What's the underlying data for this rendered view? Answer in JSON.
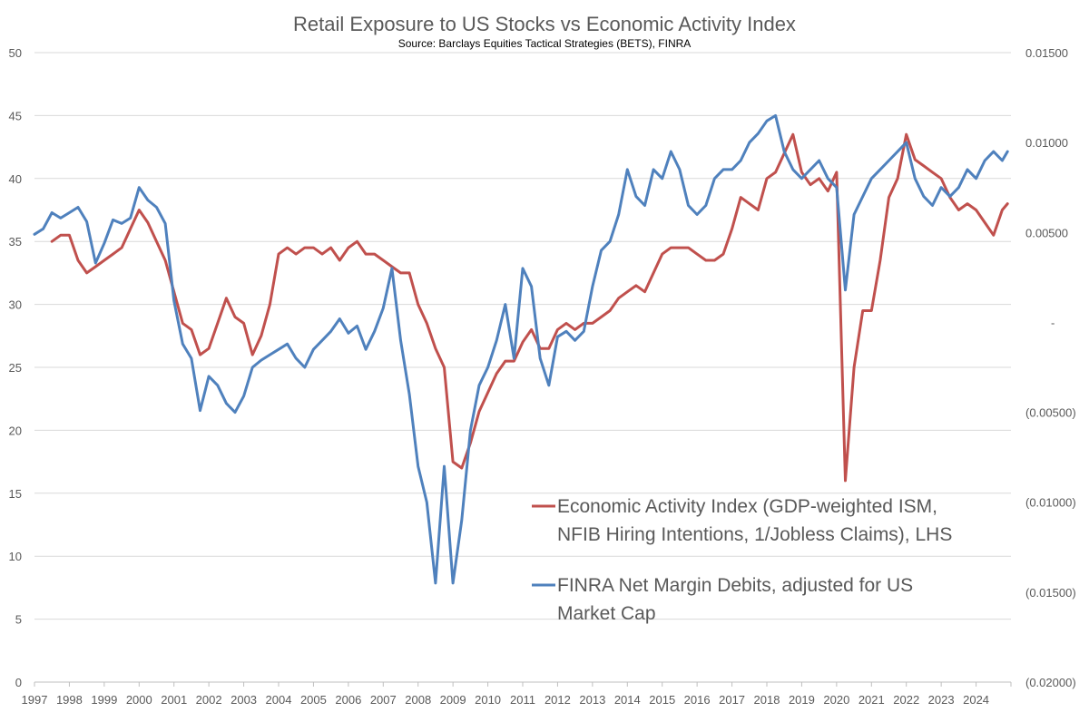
{
  "chart_data": {
    "type": "line",
    "title": "Retail Exposure to US Stocks vs Economic Activity Index",
    "subtitle": "Source: Barclays Equities Tactical Strategies (BETS), FINRA",
    "x_start": 1997.0,
    "x_end": 2025.0,
    "x_step": 0.25,
    "x_tick_labels": [
      "1997",
      "1998",
      "1999",
      "2000",
      "2001",
      "2002",
      "2003",
      "2004",
      "2005",
      "2006",
      "2007",
      "2008",
      "2009",
      "2010",
      "2011",
      "2012",
      "2013",
      "2014",
      "2015",
      "2016",
      "2017",
      "2018",
      "2019",
      "2020",
      "2021",
      "2022",
      "2023",
      "2024"
    ],
    "y_left": {
      "min": 0,
      "max": 50,
      "step": 5,
      "tick_labels": [
        "0",
        "5",
        "10",
        "15",
        "20",
        "25",
        "30",
        "35",
        "40",
        "45",
        "50"
      ]
    },
    "y_right": {
      "min": -0.02,
      "max": 0.015,
      "step": 0.005,
      "tick_labels": [
        "(0.02000)",
        "(0.01500)",
        "(0.01000)",
        "(0.00500)",
        "-",
        "0.00500",
        "0.01000",
        "0.01500"
      ]
    },
    "series": [
      {
        "name": "Economic Activity Index (GDP-weighted ISM, NFIB Hiring Intentions, 1/Jobless Claims), LHS",
        "legend_lines": [
          "Economic Activity Index (GDP-weighted ISM,",
          "NFIB Hiring Intentions, 1/Jobless Claims), LHS"
        ],
        "axis": "left",
        "color": "#c0504d",
        "start": 1997.5,
        "points": [
          [
            1997.5,
            35.0
          ],
          [
            1997.75,
            35.5
          ],
          [
            1998.0,
            35.5
          ],
          [
            1998.25,
            33.5
          ],
          [
            1998.5,
            32.5
          ],
          [
            1998.75,
            33.0
          ],
          [
            1999.0,
            33.5
          ],
          [
            1999.25,
            34.0
          ],
          [
            1999.5,
            34.5
          ],
          [
            1999.75,
            36.0
          ],
          [
            2000.0,
            37.5
          ],
          [
            2000.25,
            36.5
          ],
          [
            2000.5,
            35.0
          ],
          [
            2000.75,
            33.5
          ],
          [
            2001.0,
            31.0
          ],
          [
            2001.25,
            28.5
          ],
          [
            2001.5,
            28.0
          ],
          [
            2001.75,
            26.0
          ],
          [
            2002.0,
            26.5
          ],
          [
            2002.25,
            28.5
          ],
          [
            2002.5,
            30.5
          ],
          [
            2002.75,
            29.0
          ],
          [
            2003.0,
            28.5
          ],
          [
            2003.25,
            26.0
          ],
          [
            2003.5,
            27.5
          ],
          [
            2003.75,
            30.0
          ],
          [
            2004.0,
            34.0
          ],
          [
            2004.25,
            34.5
          ],
          [
            2004.5,
            34.0
          ],
          [
            2004.75,
            34.5
          ],
          [
            2005.0,
            34.5
          ],
          [
            2005.25,
            34.0
          ],
          [
            2005.5,
            34.5
          ],
          [
            2005.75,
            33.5
          ],
          [
            2006.0,
            34.5
          ],
          [
            2006.25,
            35.0
          ],
          [
            2006.5,
            34.0
          ],
          [
            2006.75,
            34.0
          ],
          [
            2007.0,
            33.5
          ],
          [
            2007.25,
            33.0
          ],
          [
            2007.5,
            32.5
          ],
          [
            2007.75,
            32.5
          ],
          [
            2008.0,
            30.0
          ],
          [
            2008.25,
            28.5
          ],
          [
            2008.5,
            26.5
          ],
          [
            2008.75,
            25.0
          ],
          [
            2009.0,
            17.5
          ],
          [
            2009.25,
            17.0
          ],
          [
            2009.5,
            19.0
          ],
          [
            2009.75,
            21.5
          ],
          [
            2010.0,
            23.0
          ],
          [
            2010.25,
            24.5
          ],
          [
            2010.5,
            25.5
          ],
          [
            2010.75,
            25.5
          ],
          [
            2011.0,
            27.0
          ],
          [
            2011.25,
            28.0
          ],
          [
            2011.5,
            26.5
          ],
          [
            2011.75,
            26.5
          ],
          [
            2012.0,
            28.0
          ],
          [
            2012.25,
            28.5
          ],
          [
            2012.5,
            28.0
          ],
          [
            2012.75,
            28.5
          ],
          [
            2013.0,
            28.5
          ],
          [
            2013.25,
            29.0
          ],
          [
            2013.5,
            29.5
          ],
          [
            2013.75,
            30.5
          ],
          [
            2014.0,
            31.0
          ],
          [
            2014.25,
            31.5
          ],
          [
            2014.5,
            31.0
          ],
          [
            2014.75,
            32.5
          ],
          [
            2015.0,
            34.0
          ],
          [
            2015.25,
            34.5
          ],
          [
            2015.5,
            34.5
          ],
          [
            2015.75,
            34.5
          ],
          [
            2016.0,
            34.0
          ],
          [
            2016.25,
            33.5
          ],
          [
            2016.5,
            33.5
          ],
          [
            2016.75,
            34.0
          ],
          [
            2017.0,
            36.0
          ],
          [
            2017.25,
            38.5
          ],
          [
            2017.5,
            38.0
          ],
          [
            2017.75,
            37.5
          ],
          [
            2018.0,
            40.0
          ],
          [
            2018.25,
            40.5
          ],
          [
            2018.5,
            42.0
          ],
          [
            2018.75,
            43.5
          ],
          [
            2019.0,
            40.5
          ],
          [
            2019.25,
            39.5
          ],
          [
            2019.5,
            40.0
          ],
          [
            2019.75,
            39.0
          ],
          [
            2020.0,
            40.5
          ],
          [
            2020.25,
            16.0
          ],
          [
            2020.5,
            25.0
          ],
          [
            2020.75,
            29.5
          ],
          [
            2021.0,
            29.5
          ],
          [
            2021.25,
            33.5
          ],
          [
            2021.5,
            38.5
          ],
          [
            2021.75,
            40.0
          ],
          [
            2022.0,
            43.5
          ],
          [
            2022.25,
            41.5
          ],
          [
            2022.5,
            41.0
          ],
          [
            2022.75,
            40.5
          ],
          [
            2023.0,
            40.0
          ],
          [
            2023.25,
            38.5
          ],
          [
            2023.5,
            37.5
          ],
          [
            2023.75,
            38.0
          ],
          [
            2024.0,
            37.5
          ],
          [
            2024.25,
            36.5
          ],
          [
            2024.5,
            35.5
          ],
          [
            2024.75,
            37.5
          ],
          [
            2024.9,
            38.0
          ]
        ]
      },
      {
        "name": "FINRA Net Margin Debits, adjusted for US Market Cap",
        "legend_lines": [
          "FINRA Net Margin Debits, adjusted for US",
          "Market Cap"
        ],
        "axis": "right",
        "color": "#4f81bd",
        "start": 1997.0,
        "points": [
          [
            1997.0,
            0.0049
          ],
          [
            1997.25,
            0.0052
          ],
          [
            1997.5,
            0.0061
          ],
          [
            1997.75,
            0.0058
          ],
          [
            1998.0,
            0.0061
          ],
          [
            1998.25,
            0.0064
          ],
          [
            1998.5,
            0.0056
          ],
          [
            1998.75,
            0.0033
          ],
          [
            1999.0,
            0.0044
          ],
          [
            1999.25,
            0.0057
          ],
          [
            1999.5,
            0.0055
          ],
          [
            1999.75,
            0.0058
          ],
          [
            2000.0,
            0.0075
          ],
          [
            2000.25,
            0.0068
          ],
          [
            2000.5,
            0.0064
          ],
          [
            2000.75,
            0.0055
          ],
          [
            2001.0,
            0.0012
          ],
          [
            2001.25,
            -0.0012
          ],
          [
            2001.5,
            -0.002
          ],
          [
            2001.75,
            -0.0049
          ],
          [
            2002.0,
            -0.003
          ],
          [
            2002.25,
            -0.0035
          ],
          [
            2002.5,
            -0.0045
          ],
          [
            2002.75,
            -0.005
          ],
          [
            2003.0,
            -0.0041
          ],
          [
            2003.25,
            -0.0025
          ],
          [
            2003.5,
            -0.0021
          ],
          [
            2003.75,
            -0.0018
          ],
          [
            2004.0,
            -0.0015
          ],
          [
            2004.25,
            -0.0012
          ],
          [
            2004.5,
            -0.002
          ],
          [
            2004.75,
            -0.0025
          ],
          [
            2005.0,
            -0.0015
          ],
          [
            2005.25,
            -0.001
          ],
          [
            2005.5,
            -0.0005
          ],
          [
            2005.75,
            0.0002
          ],
          [
            2006.0,
            -0.0006
          ],
          [
            2006.25,
            -0.0002
          ],
          [
            2006.5,
            -0.0015
          ],
          [
            2006.75,
            -0.0005
          ],
          [
            2007.0,
            0.0008
          ],
          [
            2007.25,
            0.003
          ],
          [
            2007.5,
            -0.001
          ],
          [
            2007.75,
            -0.004
          ],
          [
            2008.0,
            -0.008
          ],
          [
            2008.25,
            -0.01
          ],
          [
            2008.5,
            -0.0145
          ],
          [
            2008.75,
            -0.008
          ],
          [
            2009.0,
            -0.0145
          ],
          [
            2009.25,
            -0.011
          ],
          [
            2009.5,
            -0.006
          ],
          [
            2009.75,
            -0.0035
          ],
          [
            2010.0,
            -0.0025
          ],
          [
            2010.25,
            -0.001
          ],
          [
            2010.5,
            0.001
          ],
          [
            2010.75,
            -0.002
          ],
          [
            2011.0,
            0.003
          ],
          [
            2011.25,
            0.002
          ],
          [
            2011.5,
            -0.002
          ],
          [
            2011.75,
            -0.0035
          ],
          [
            2012.0,
            -0.0008
          ],
          [
            2012.25,
            -0.0005
          ],
          [
            2012.5,
            -0.001
          ],
          [
            2012.75,
            -0.0005
          ],
          [
            2013.0,
            0.002
          ],
          [
            2013.25,
            0.004
          ],
          [
            2013.5,
            0.0045
          ],
          [
            2013.75,
            0.006
          ],
          [
            2014.0,
            0.0085
          ],
          [
            2014.25,
            0.007
          ],
          [
            2014.5,
            0.0065
          ],
          [
            2014.75,
            0.0085
          ],
          [
            2015.0,
            0.008
          ],
          [
            2015.25,
            0.0095
          ],
          [
            2015.5,
            0.0085
          ],
          [
            2015.75,
            0.0065
          ],
          [
            2016.0,
            0.006
          ],
          [
            2016.25,
            0.0065
          ],
          [
            2016.5,
            0.008
          ],
          [
            2016.75,
            0.0085
          ],
          [
            2017.0,
            0.0085
          ],
          [
            2017.25,
            0.009
          ],
          [
            2017.5,
            0.01
          ],
          [
            2017.75,
            0.0105
          ],
          [
            2018.0,
            0.0112
          ],
          [
            2018.25,
            0.0115
          ],
          [
            2018.5,
            0.0095
          ],
          [
            2018.75,
            0.0085
          ],
          [
            2019.0,
            0.008
          ],
          [
            2019.25,
            0.0085
          ],
          [
            2019.5,
            0.009
          ],
          [
            2019.75,
            0.008
          ],
          [
            2020.0,
            0.0075
          ],
          [
            2020.25,
            0.0018
          ],
          [
            2020.5,
            0.006
          ],
          [
            2020.75,
            0.007
          ],
          [
            2021.0,
            0.008
          ],
          [
            2021.25,
            0.0085
          ],
          [
            2021.5,
            0.009
          ],
          [
            2021.75,
            0.0095
          ],
          [
            2022.0,
            0.01
          ],
          [
            2022.25,
            0.008
          ],
          [
            2022.5,
            0.007
          ],
          [
            2022.75,
            0.0065
          ],
          [
            2023.0,
            0.0075
          ],
          [
            2023.25,
            0.007
          ],
          [
            2023.5,
            0.0075
          ],
          [
            2023.75,
            0.0085
          ],
          [
            2024.0,
            0.008
          ],
          [
            2024.25,
            0.009
          ],
          [
            2024.5,
            0.0095
          ],
          [
            2024.75,
            0.009
          ],
          [
            2024.9,
            0.0095
          ]
        ]
      }
    ],
    "legend_position": "bottom-right"
  }
}
